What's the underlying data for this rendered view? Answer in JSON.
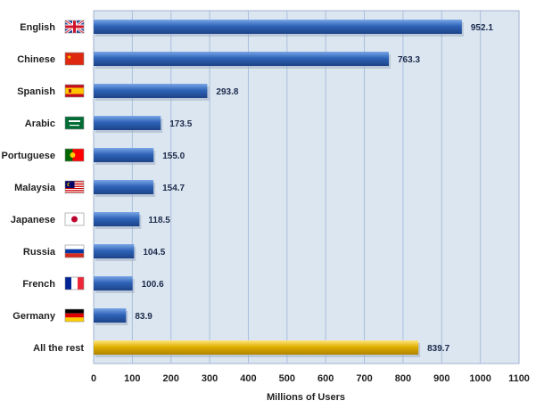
{
  "chart_data": {
    "type": "bar",
    "orientation": "horizontal",
    "categories": [
      "English",
      "Chinese",
      "Spanish",
      "Arabic",
      "Portuguese",
      "Malaysia",
      "Japanese",
      "Russia",
      "French",
      "Germany",
      "All the rest"
    ],
    "values": [
      952.1,
      763.3,
      293.8,
      173.5,
      155.0,
      154.7,
      118.5,
      104.5,
      100.6,
      83.9,
      839.7
    ],
    "value_labels": [
      "952.1",
      "763.3",
      "293.8",
      "173.5",
      "155.0",
      "154.7",
      "118.5",
      "104.5",
      "100.6",
      "83.9",
      "839.7"
    ],
    "flags": [
      "uk-flag-icon",
      "china-flag-icon",
      "spain-flag-icon",
      "saudi-arabia-flag-icon",
      "portugal-flag-icon",
      "malaysia-flag-icon",
      "japan-flag-icon",
      "russia-flag-icon",
      "france-flag-icon",
      "germany-flag-icon",
      ""
    ],
    "bar_colors": [
      "#2f64b8",
      "#2f64b8",
      "#2f64b8",
      "#2f64b8",
      "#2f64b8",
      "#2f64b8",
      "#2f64b8",
      "#2f64b8",
      "#2f64b8",
      "#2f64b8",
      "#e0b000"
    ],
    "title": "",
    "xlabel": "Millions of Users",
    "ylabel": "",
    "xlim": [
      0,
      1100
    ],
    "xticks": [
      0,
      100,
      200,
      300,
      400,
      500,
      600,
      700,
      800,
      900,
      1000,
      1100
    ],
    "grid": "vertical",
    "plot_background": "#dce6f1",
    "grid_color": "#a9bedc"
  }
}
